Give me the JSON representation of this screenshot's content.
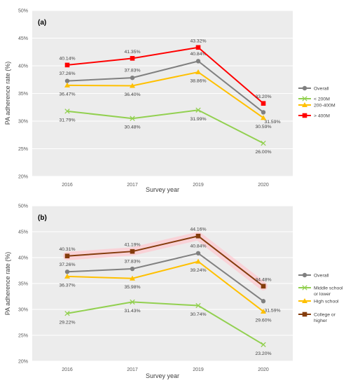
{
  "y_axis_title": "PA adherence rate (%)",
  "x_axis_title": "Survey year",
  "chart_data": [
    {
      "type": "line",
      "panel_label": "(a)",
      "categories": [
        "2016",
        "2017",
        "2019",
        "2020"
      ],
      "ylim": [
        20,
        50
      ],
      "yticks": [
        "20%",
        "25%",
        "30%",
        "35%",
        "40%",
        "45%",
        "50%"
      ],
      "xlabel": "Survey year",
      "ylabel": "PA adherence rate (%)",
      "grid": true,
      "legend_position": "right",
      "series": [
        {
          "name": "Overall",
          "values": [
            37.26,
            37.83,
            40.84,
            31.59
          ],
          "labels": [
            "37.26%",
            "37.83%",
            "40.84%",
            "31.59%"
          ],
          "color": "#808080",
          "marker": "circle"
        },
        {
          "name": "< 200M",
          "values": [
            31.79,
            30.48,
            31.99,
            26.0
          ],
          "labels": [
            "31.79%",
            "30.48%",
            "31.99%",
            "26.00%"
          ],
          "color": "#92D050",
          "marker": "x"
        },
        {
          "name": "200-400M",
          "values": [
            36.47,
            36.4,
            38.86,
            30.59
          ],
          "labels": [
            "36.47%",
            "36.40%",
            "38.86%",
            "30.59%"
          ],
          "color": "#FFC000",
          "marker": "triangle"
        },
        {
          "name": "> 400M",
          "values": [
            40.14,
            41.35,
            43.32,
            33.2
          ],
          "labels": [
            "40.14%",
            "41.35%",
            "43.32%",
            "33.20%"
          ],
          "color": "#FF0000",
          "marker": "square"
        }
      ]
    },
    {
      "type": "line",
      "panel_label": "(b)",
      "categories": [
        "2016",
        "2017",
        "2019",
        "2020"
      ],
      "ylim": [
        20,
        50
      ],
      "yticks": [
        "20%",
        "25%",
        "30%",
        "35%",
        "40%",
        "45%",
        "50%"
      ],
      "xlabel": "Survey year",
      "ylabel": "PA adherence rate (%)",
      "grid": true,
      "legend_position": "right",
      "series": [
        {
          "name": "Overall",
          "values": [
            37.26,
            37.83,
            40.84,
            31.59
          ],
          "labels": [
            "37.26%",
            "37.83%",
            "40.84%",
            "31.59%"
          ],
          "color": "#808080",
          "marker": "circle"
        },
        {
          "name": "Middle school or lower",
          "values": [
            29.22,
            31.43,
            30.74,
            23.2
          ],
          "labels": [
            "29.22%",
            "31.43%",
            "30.74%",
            "23.20%"
          ],
          "color": "#92D050",
          "marker": "x"
        },
        {
          "name": "High school",
          "values": [
            36.37,
            35.98,
            39.24,
            29.6
          ],
          "labels": [
            "36.37%",
            "35.98%",
            "39.24%",
            "29.60%"
          ],
          "color": "#FFC000",
          "marker": "triangle"
        },
        {
          "name": "College or higher",
          "values": [
            40.31,
            41.19,
            44.16,
            34.48
          ],
          "labels": [
            "40.31%",
            "41.19%",
            "44.16%",
            "34.48%"
          ],
          "color": "#843C0C",
          "marker": "square"
        }
      ]
    }
  ]
}
